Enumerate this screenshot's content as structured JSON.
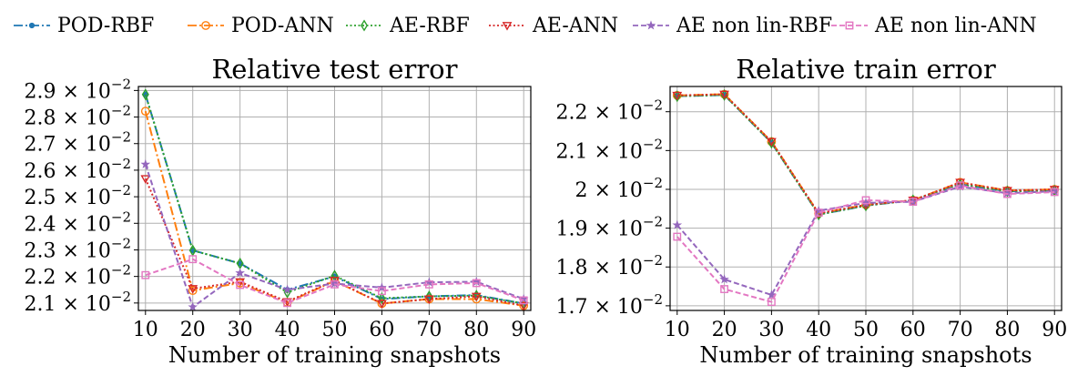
{
  "chart_data": [
    {
      "type": "line",
      "title": "Relative test error",
      "xlabel": "Number of training snapshots",
      "ylabel": "",
      "x": [
        10,
        20,
        30,
        40,
        50,
        60,
        70,
        80,
        90
      ],
      "xticks": [
        "10",
        "20",
        "30",
        "40",
        "50",
        "60",
        "70",
        "80",
        "90"
      ],
      "ylim": [
        0.02072,
        0.02915
      ],
      "yticks": [
        {
          "value": 0.021,
          "mant": "2.1"
        },
        {
          "value": 0.022,
          "mant": "2.2"
        },
        {
          "value": 0.023,
          "mant": "2.3"
        },
        {
          "value": 0.024,
          "mant": "2.4"
        },
        {
          "value": 0.025,
          "mant": "2.5"
        },
        {
          "value": 0.026,
          "mant": "2.6"
        },
        {
          "value": 0.027,
          "mant": "2.7"
        },
        {
          "value": 0.028,
          "mant": "2.8"
        },
        {
          "value": 0.029,
          "mant": "2.9"
        }
      ],
      "tick_suffix": "× 10",
      "tick_exponent": "−2",
      "grid": true,
      "series": [
        {
          "name": "POD-RBF",
          "values": [
            0.02885,
            0.02298,
            0.02249,
            0.0215,
            0.022,
            0.02115,
            0.02125,
            0.0213,
            0.02098
          ]
        },
        {
          "name": "POD-ANN",
          "values": [
            0.02822,
            0.02147,
            0.02175,
            0.02102,
            0.02183,
            0.02098,
            0.02115,
            0.02115,
            0.0209
          ]
        },
        {
          "name": "AE-RBF",
          "values": [
            0.02885,
            0.02298,
            0.02249,
            0.0214,
            0.02203,
            0.02118,
            0.02125,
            0.02128,
            0.02098
          ]
        },
        {
          "name": "AE-ANN",
          "values": [
            0.02568,
            0.02154,
            0.0218,
            0.02105,
            0.02185,
            0.02098,
            0.02115,
            0.02125,
            0.0209
          ]
        },
        {
          "name": "AE non lin-RBF",
          "values": [
            0.02622,
            0.02085,
            0.02213,
            0.0215,
            0.02173,
            0.02158,
            0.02178,
            0.0218,
            0.02115
          ]
        },
        {
          "name": "AE non lin-ANN",
          "values": [
            0.02205,
            0.02265,
            0.02168,
            0.021,
            0.0217,
            0.02145,
            0.0217,
            0.02175,
            0.0211
          ]
        }
      ]
    },
    {
      "type": "line",
      "title": "Relative train error",
      "xlabel": "Number of training snapshots",
      "ylabel": "",
      "x": [
        10,
        20,
        30,
        40,
        50,
        60,
        70,
        80,
        90
      ],
      "xticks": [
        "10",
        "20",
        "30",
        "40",
        "50",
        "60",
        "70",
        "80",
        "90"
      ],
      "ylim": [
        0.01688,
        0.02265
      ],
      "yticks": [
        {
          "value": 0.017,
          "mant": "1.7"
        },
        {
          "value": 0.018,
          "mant": "1.8"
        },
        {
          "value": 0.019,
          "mant": "1.9"
        },
        {
          "value": 0.02,
          "mant": "2"
        },
        {
          "value": 0.021,
          "mant": "2.1"
        },
        {
          "value": 0.022,
          "mant": "2.2"
        }
      ],
      "tick_suffix": "× 10",
      "tick_exponent": "−2",
      "grid": true,
      "series": [
        {
          "name": "POD-RBF",
          "values": [
            0.0224,
            0.02243,
            0.0212,
            0.01935,
            0.01958,
            0.01972,
            0.02013,
            0.01995,
            0.01997
          ]
        },
        {
          "name": "POD-ANN",
          "values": [
            0.02242,
            0.02245,
            0.02123,
            0.01938,
            0.0196,
            0.01972,
            0.02018,
            0.01997,
            0.02
          ]
        },
        {
          "name": "AE-RBF",
          "values": [
            0.0224,
            0.02243,
            0.0212,
            0.01935,
            0.01958,
            0.01972,
            0.02013,
            0.01995,
            0.01997
          ]
        },
        {
          "name": "AE-ANN",
          "values": [
            0.02242,
            0.02245,
            0.02123,
            0.01938,
            0.0196,
            0.01972,
            0.02018,
            0.01997,
            0.02
          ]
        },
        {
          "name": "AE non lin-RBF",
          "values": [
            0.01908,
            0.01768,
            0.01728,
            0.01945,
            0.01965,
            0.01968,
            0.02007,
            0.0199,
            0.01995
          ]
        },
        {
          "name": "AE non lin-ANN",
          "values": [
            0.01878,
            0.01743,
            0.0171,
            0.0194,
            0.01972,
            0.01968,
            0.0201,
            0.01988,
            0.01993
          ]
        }
      ]
    }
  ],
  "legend": {
    "placement": "top",
    "items": [
      {
        "name": "POD-RBF",
        "color": "#1f77b4",
        "dash": "dashdot",
        "marker": "dot"
      },
      {
        "name": "POD-ANN",
        "color": "#ff7f0e",
        "dash": "dashdot",
        "marker": "circle"
      },
      {
        "name": "AE-RBF",
        "color": "#2ca02c",
        "dash": "dotted",
        "marker": "diamond"
      },
      {
        "name": "AE-ANN",
        "color": "#d62728",
        "dash": "dotted",
        "marker": "triangle-down"
      },
      {
        "name": "AE non lin-RBF",
        "color": "#9467bd",
        "dash": "dashed",
        "marker": "star"
      },
      {
        "name": "AE non lin-ANN",
        "color": "#e377c2",
        "dash": "dashed",
        "marker": "square"
      }
    ]
  }
}
